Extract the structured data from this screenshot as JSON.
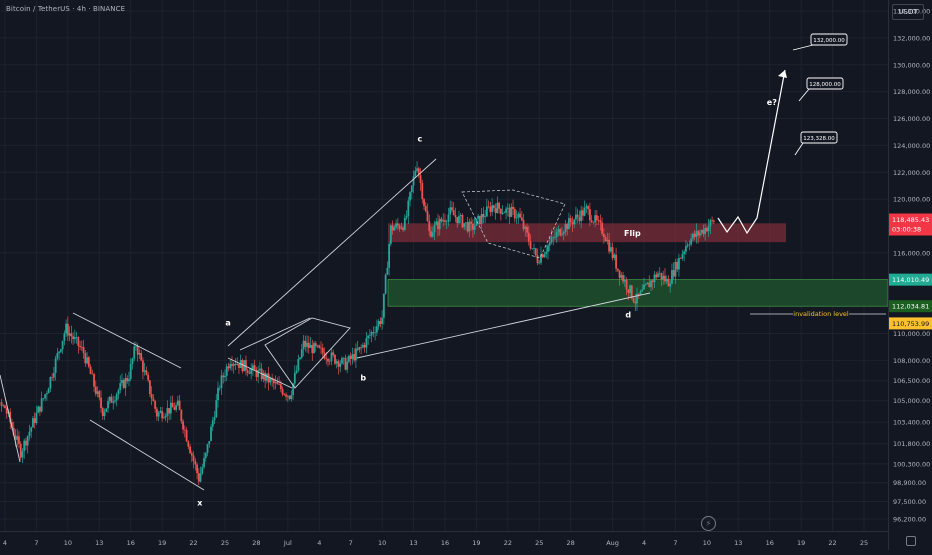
{
  "header": {
    "symbol_title": "Bitcoin / TetherUS · 4h · BINANCE"
  },
  "price_axis": {
    "currency": "USDT",
    "ticks": [
      {
        "label": "134,000.00",
        "value": 134000
      },
      {
        "label": "132,000.00",
        "value": 132000
      },
      {
        "label": "130,000.00",
        "value": 130000
      },
      {
        "label": "128,000.00",
        "value": 128000
      },
      {
        "label": "126,000.00",
        "value": 126000
      },
      {
        "label": "124,000.00",
        "value": 124000
      },
      {
        "label": "122,000.00",
        "value": 122000
      },
      {
        "label": "120,000.00",
        "value": 120000
      },
      {
        "label": "116,000.00",
        "value": 116000
      },
      {
        "label": "110,000.00",
        "value": 110000
      },
      {
        "label": "108,000.00",
        "value": 108000
      },
      {
        "label": "106,500.00",
        "value": 106500
      },
      {
        "label": "105,000.00",
        "value": 105000
      },
      {
        "label": "103,400.00",
        "value": 103400
      },
      {
        "label": "101,800.00",
        "value": 101800
      },
      {
        "label": "100,300.00",
        "value": 100300
      },
      {
        "label": "98,900.00",
        "value": 98900
      },
      {
        "label": "97,500.00",
        "value": 97500
      },
      {
        "label": "96,200.00",
        "value": 96200
      }
    ],
    "current_price": {
      "label": "118,485.43",
      "countdown": "03:00:38",
      "value": 118485.43,
      "color": "#f23645"
    },
    "level_green": {
      "label": "114,010.49",
      "value": 114010.49,
      "color": "#22ab94"
    },
    "level_green_dark": {
      "label": "112,034.81",
      "value": 112034.81,
      "color": "#1b5e20"
    },
    "level_yellow": {
      "label": "110,753.99",
      "value": 110753.99,
      "color": "#fbc02d"
    }
  },
  "time_axis": {
    "ticks": [
      {
        "label": "4",
        "day": 4
      },
      {
        "label": "7",
        "day": 7
      },
      {
        "label": "10",
        "day": 10
      },
      {
        "label": "13",
        "day": 13
      },
      {
        "label": "16",
        "day": 16
      },
      {
        "label": "19",
        "day": 19
      },
      {
        "label": "22",
        "day": 22
      },
      {
        "label": "25",
        "day": 25
      },
      {
        "label": "28",
        "day": 28
      },
      {
        "label": "Jul",
        "day": 31
      },
      {
        "label": "4",
        "day": 34
      },
      {
        "label": "7",
        "day": 37
      },
      {
        "label": "10",
        "day": 40
      },
      {
        "label": "13",
        "day": 43
      },
      {
        "label": "16",
        "day": 46
      },
      {
        "label": "19",
        "day": 49
      },
      {
        "label": "22",
        "day": 52
      },
      {
        "label": "25",
        "day": 55
      },
      {
        "label": "28",
        "day": 58
      },
      {
        "label": "Aug",
        "day": 62
      },
      {
        "label": "4",
        "day": 65
      },
      {
        "label": "7",
        "day": 68
      },
      {
        "label": "10",
        "day": 71
      },
      {
        "label": "13",
        "day": 74
      },
      {
        "label": "16",
        "day": 77
      },
      {
        "label": "19",
        "day": 80
      },
      {
        "label": "22",
        "day": 83
      },
      {
        "label": "25",
        "day": 86
      }
    ]
  },
  "annotations": {
    "wave_labels": [
      {
        "text": "x",
        "day": 22.6,
        "price": 97200
      },
      {
        "text": "a",
        "day": 25.3,
        "price": 110600
      },
      {
        "text": "b",
        "day": 38.2,
        "price": 106500
      },
      {
        "text": "c",
        "day": 43.6,
        "price": 124300
      },
      {
        "text": "d",
        "day": 63.5,
        "price": 111200
      },
      {
        "text": "e?",
        "day": 77.2,
        "price": 127000
      }
    ],
    "flip_label": "Flip",
    "invalidation_label": "invalidation level",
    "targets": [
      {
        "label": "132,000.00",
        "price": 132000
      },
      {
        "label": "128,000.00",
        "price": 128000
      },
      {
        "label": "123,328.00",
        "price": 123328
      }
    ]
  },
  "zones": {
    "flip": {
      "from": 116800,
      "to": 118200,
      "color": "#7b2d3a"
    },
    "support": {
      "from": 112034.81,
      "to": 114010.49,
      "color": "#1e4d2b"
    }
  },
  "colors": {
    "up": "#26a69a",
    "down": "#ef5350",
    "background": "#131722",
    "grid": "#1e222d",
    "text": "#b2b5be"
  },
  "chart_data": {
    "type": "candlestick",
    "title": "Bitcoin / TetherUS · 4h · BINANCE",
    "ylim": [
      95500,
      136000
    ],
    "x_axis": "days (Jun 4 = 4, Jul 1 = 31, Aug 1 = 62)",
    "key_points": [
      {
        "day": 1,
        "price": 104800
      },
      {
        "day": 4,
        "price": 104500
      },
      {
        "day": 5.5,
        "price": 101200
      },
      {
        "day": 8,
        "price": 105800
      },
      {
        "day": 9.8,
        "price": 110400
      },
      {
        "day": 11.5,
        "price": 108600
      },
      {
        "day": 13.3,
        "price": 104200
      },
      {
        "day": 15.8,
        "price": 106800
      },
      {
        "day": 16.5,
        "price": 109200
      },
      {
        "day": 18.5,
        "price": 104000
      },
      {
        "day": 20.5,
        "price": 104600
      },
      {
        "day": 22.5,
        "price": 99200
      },
      {
        "day": 23.2,
        "price": 101000
      },
      {
        "day": 24.5,
        "price": 106200
      },
      {
        "day": 25.5,
        "price": 108100
      },
      {
        "day": 28.5,
        "price": 106900
      },
      {
        "day": 31.2,
        "price": 105400
      },
      {
        "day": 32.5,
        "price": 109200
      },
      {
        "day": 34.5,
        "price": 108500
      },
      {
        "day": 36.5,
        "price": 107700
      },
      {
        "day": 38,
        "price": 108900
      },
      {
        "day": 40,
        "price": 111200
      },
      {
        "day": 40.8,
        "price": 117800
      },
      {
        "day": 42.2,
        "price": 118200
      },
      {
        "day": 43.3,
        "price": 122800
      },
      {
        "day": 44.5,
        "price": 117500
      },
      {
        "day": 46.5,
        "price": 119000
      },
      {
        "day": 48.5,
        "price": 117800
      },
      {
        "day": 50.5,
        "price": 119500
      },
      {
        "day": 53,
        "price": 118800
      },
      {
        "day": 54.8,
        "price": 115500
      },
      {
        "day": 57,
        "price": 117700
      },
      {
        "day": 59.5,
        "price": 119200
      },
      {
        "day": 61.2,
        "price": 117500
      },
      {
        "day": 62.5,
        "price": 114800
      },
      {
        "day": 64.2,
        "price": 112400
      },
      {
        "day": 66.3,
        "price": 114500
      },
      {
        "day": 67.3,
        "price": 113800
      },
      {
        "day": 69.2,
        "price": 116900
      },
      {
        "day": 70.5,
        "price": 117600
      },
      {
        "day": 71.8,
        "price": 118485.43
      }
    ]
  }
}
